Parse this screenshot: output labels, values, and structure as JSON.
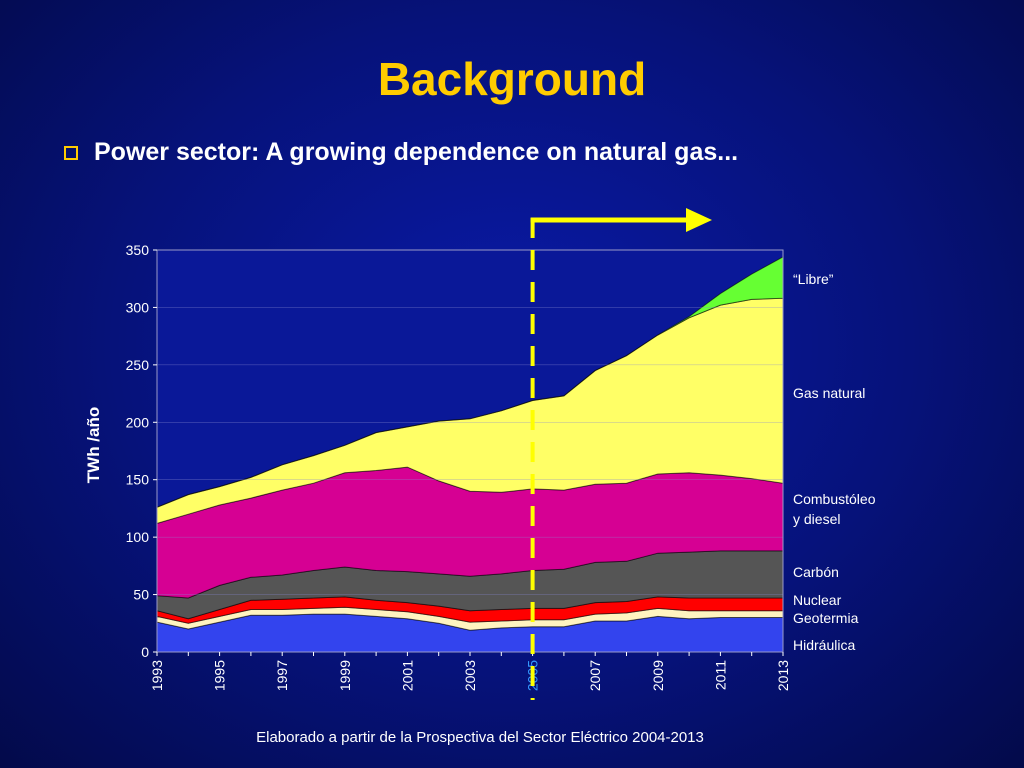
{
  "slide": {
    "title": "Background",
    "bullet": "Power sector: A growing dependence on natural gas...",
    "footer": "Elaborado a partir de la Prospectiva del Sector Eléctrico 2004-2013"
  },
  "colors": {
    "title": "#ffcc00",
    "highlight_year": "#3399ff",
    "marker": "#ffff00"
  },
  "chart_data": {
    "type": "area",
    "stacked": true,
    "ylabel": "TWh /año",
    "xlabel": "",
    "ylim": [
      0,
      350
    ],
    "yticks": [
      0,
      50,
      100,
      150,
      200,
      250,
      300,
      350
    ],
    "x": [
      1993,
      1994,
      1995,
      1996,
      1997,
      1998,
      1999,
      2000,
      2001,
      2002,
      2003,
      2004,
      2005,
      2006,
      2007,
      2008,
      2009,
      2010,
      2011,
      2012,
      2013
    ],
    "xtick_labels": [
      "1993",
      "1995",
      "1997",
      "1999",
      "2001",
      "2003",
      "2005",
      "2007",
      "2009",
      "2011",
      "2013"
    ],
    "highlight_tick": "2005",
    "marker_year": 2005,
    "grid": true,
    "series": [
      {
        "name": "Hidráulica",
        "color": "#3344ee",
        "values": [
          26,
          20,
          26,
          32,
          32,
          33,
          33,
          31,
          29,
          25,
          19,
          21,
          22,
          22,
          27,
          27,
          31,
          29,
          30,
          30,
          30
        ]
      },
      {
        "name": "Geotermia",
        "color": "#fff4c0",
        "values": [
          5,
          5,
          5,
          5,
          5,
          5,
          6,
          6,
          6,
          6,
          7,
          6,
          6,
          6,
          6,
          7,
          7,
          7,
          6,
          6,
          6
        ]
      },
      {
        "name": "Nuclear",
        "color": "#ff0000",
        "values": [
          5,
          4,
          6,
          8,
          9,
          9,
          9,
          8,
          8,
          9,
          10,
          10,
          10,
          10,
          10,
          10,
          10,
          11,
          11,
          11,
          11
        ]
      },
      {
        "name": "Carbón",
        "color": "#555555",
        "values": [
          13,
          18,
          21,
          20,
          21,
          24,
          26,
          26,
          27,
          28,
          30,
          31,
          33,
          34,
          35,
          35,
          38,
          40,
          41,
          41,
          41
        ]
      },
      {
        "name": "Combustóleo y diesel",
        "color": "#d60093",
        "values": [
          63,
          73,
          70,
          69,
          74,
          76,
          82,
          87,
          91,
          81,
          74,
          71,
          71,
          69,
          68,
          68,
          69,
          69,
          66,
          63,
          59
        ]
      },
      {
        "name": "Gas natural",
        "color": "#ffff66",
        "values": [
          14,
          17,
          16,
          18,
          22,
          24,
          24,
          33,
          35,
          52,
          63,
          71,
          77,
          82,
          99,
          111,
          121,
          135,
          148,
          156,
          161
        ]
      },
      {
        "name": "“Libre”",
        "color": "#66ff33",
        "values": [
          0,
          0,
          0,
          0,
          0,
          0,
          0,
          0,
          0,
          0,
          0,
          0,
          0,
          0,
          0,
          0,
          0,
          1,
          10,
          22,
          36
        ]
      }
    ],
    "legend_labels": [
      {
        "key": "libre",
        "text": "“Libre”"
      },
      {
        "key": "gas",
        "text": "Gas natural"
      },
      {
        "key": "comb1",
        "text": "Combustóleo"
      },
      {
        "key": "comb2",
        "text": "y diesel"
      },
      {
        "key": "carbon",
        "text": "Carbón"
      },
      {
        "key": "nuclear",
        "text": "Nuclear"
      },
      {
        "key": "geo",
        "text": "Geotermia"
      },
      {
        "key": "hidro",
        "text": "Hidráulica"
      }
    ]
  }
}
